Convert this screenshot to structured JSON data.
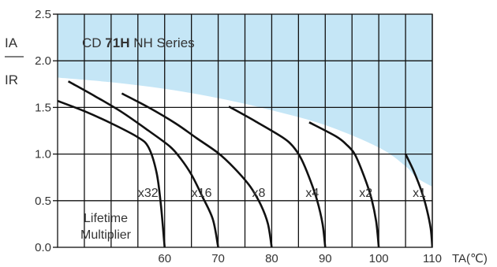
{
  "chart_data": {
    "type": "line",
    "title_parts": [
      "CD ",
      "71H",
      " NH Series"
    ],
    "ylabel_top": "IA",
    "ylabel_bottom": "IR",
    "xlabel": "TA(℃)",
    "xlim": [
      40,
      110
    ],
    "ylim": [
      0,
      2.5
    ],
    "x_ticks": [
      60,
      70,
      80,
      90,
      100,
      110
    ],
    "y_ticks": [
      "0.0",
      "0.5",
      "1.0",
      "1.5",
      "2.0",
      "2.5"
    ],
    "x_gridlines": [
      45,
      50,
      55,
      60,
      65,
      70,
      75,
      80,
      85,
      90,
      95,
      100,
      105,
      110
    ],
    "y_gridlines": [
      0.5,
      1.0,
      1.5,
      2.0
    ],
    "shaded_region": {
      "color": "#c5e6f6",
      "boundary": [
        [
          40,
          1.82
        ],
        [
          50,
          1.77
        ],
        [
          60,
          1.7
        ],
        [
          70,
          1.6
        ],
        [
          80,
          1.47
        ],
        [
          90,
          1.31
        ],
        [
          100,
          1.07
        ],
        [
          105,
          0.87
        ],
        [
          107,
          0.75
        ],
        [
          110,
          0.65
        ]
      ]
    },
    "note_lines": [
      "Lifetime",
      "Multiplier"
    ],
    "series": [
      {
        "name": "x32",
        "points": [
          [
            40,
            1.57
          ],
          [
            45,
            1.46
          ],
          [
            50,
            1.33
          ],
          [
            55,
            1.18
          ],
          [
            57,
            1.07
          ],
          [
            58.5,
            0.8
          ],
          [
            59.3,
            0.45
          ],
          [
            60,
            0.0
          ]
        ]
      },
      {
        "name": "x16",
        "points": [
          [
            42,
            1.78
          ],
          [
            47,
            1.62
          ],
          [
            52,
            1.45
          ],
          [
            57,
            1.25
          ],
          [
            61,
            1.08
          ],
          [
            63,
            0.95
          ],
          [
            65,
            0.78
          ],
          [
            67,
            0.55
          ],
          [
            69,
            0.3
          ],
          [
            70,
            0.0
          ]
        ]
      },
      {
        "name": "x8",
        "points": [
          [
            52,
            1.65
          ],
          [
            57,
            1.5
          ],
          [
            62,
            1.33
          ],
          [
            66,
            1.17
          ],
          [
            70,
            1.01
          ],
          [
            73,
            0.85
          ],
          [
            76,
            0.65
          ],
          [
            78,
            0.45
          ],
          [
            79.3,
            0.25
          ],
          [
            80,
            0.0
          ]
        ]
      },
      {
        "name": "x4",
        "points": [
          [
            72,
            1.51
          ],
          [
            77,
            1.35
          ],
          [
            82,
            1.18
          ],
          [
            84,
            1.08
          ],
          [
            85.5,
            0.95
          ],
          [
            87,
            0.75
          ],
          [
            88.5,
            0.5
          ],
          [
            89.5,
            0.25
          ],
          [
            90,
            0.0
          ]
        ]
      },
      {
        "name": "x2",
        "points": [
          [
            87,
            1.34
          ],
          [
            92,
            1.19
          ],
          [
            94,
            1.1
          ],
          [
            95.5,
            1.0
          ],
          [
            97,
            0.8
          ],
          [
            98.5,
            0.55
          ],
          [
            99.5,
            0.28
          ],
          [
            100,
            0.0
          ]
        ]
      },
      {
        "name": "x1",
        "points": [
          [
            105,
            1.0
          ],
          [
            106.5,
            0.82
          ],
          [
            108,
            0.6
          ],
          [
            109,
            0.4
          ],
          [
            109.7,
            0.2
          ],
          [
            110,
            0.0
          ]
        ]
      }
    ],
    "colors": {
      "shade": "#c5e6f6",
      "lines": "#111111",
      "text": "#333333"
    }
  }
}
